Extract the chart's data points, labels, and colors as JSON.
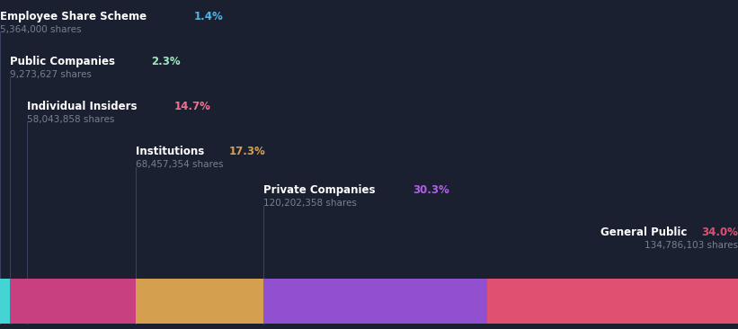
{
  "background_color": "#1b2030",
  "segments": [
    {
      "label": "Employee Share Scheme",
      "pct": "1.4%",
      "shares": "5,364,000 shares",
      "value": 1.4,
      "color": "#45d4d4",
      "pct_color": "#45b8e8",
      "label_level": 0
    },
    {
      "label": "Public Companies",
      "pct": "2.3%",
      "shares": "9,273,627 shares",
      "value": 2.3,
      "color": "#c94080",
      "pct_color": "#a0e8c0",
      "label_level": 1
    },
    {
      "label": "Individual Insiders",
      "pct": "14.7%",
      "shares": "58,043,858 shares",
      "value": 14.7,
      "color": "#c94080",
      "pct_color": "#f07090",
      "label_level": 2
    },
    {
      "label": "Institutions",
      "pct": "17.3%",
      "shares": "68,457,354 shares",
      "value": 17.3,
      "color": "#d4a050",
      "pct_color": "#d4a050",
      "label_level": 3
    },
    {
      "label": "Private Companies",
      "pct": "30.3%",
      "shares": "120,202,358 shares",
      "value": 30.3,
      "color": "#9050d0",
      "pct_color": "#b060e8",
      "label_level": 4
    },
    {
      "label": "General Public",
      "pct": "34.0%",
      "shares": "134,786,103 shares",
      "value": 34.0,
      "color": "#e05070",
      "pct_color": "#e05070",
      "label_level": 5
    }
  ],
  "label_color": "#ffffff",
  "shares_color": "#7a8090",
  "line_color": "#3a4060",
  "figsize": [
    8.21,
    3.66
  ],
  "dpi": 100
}
